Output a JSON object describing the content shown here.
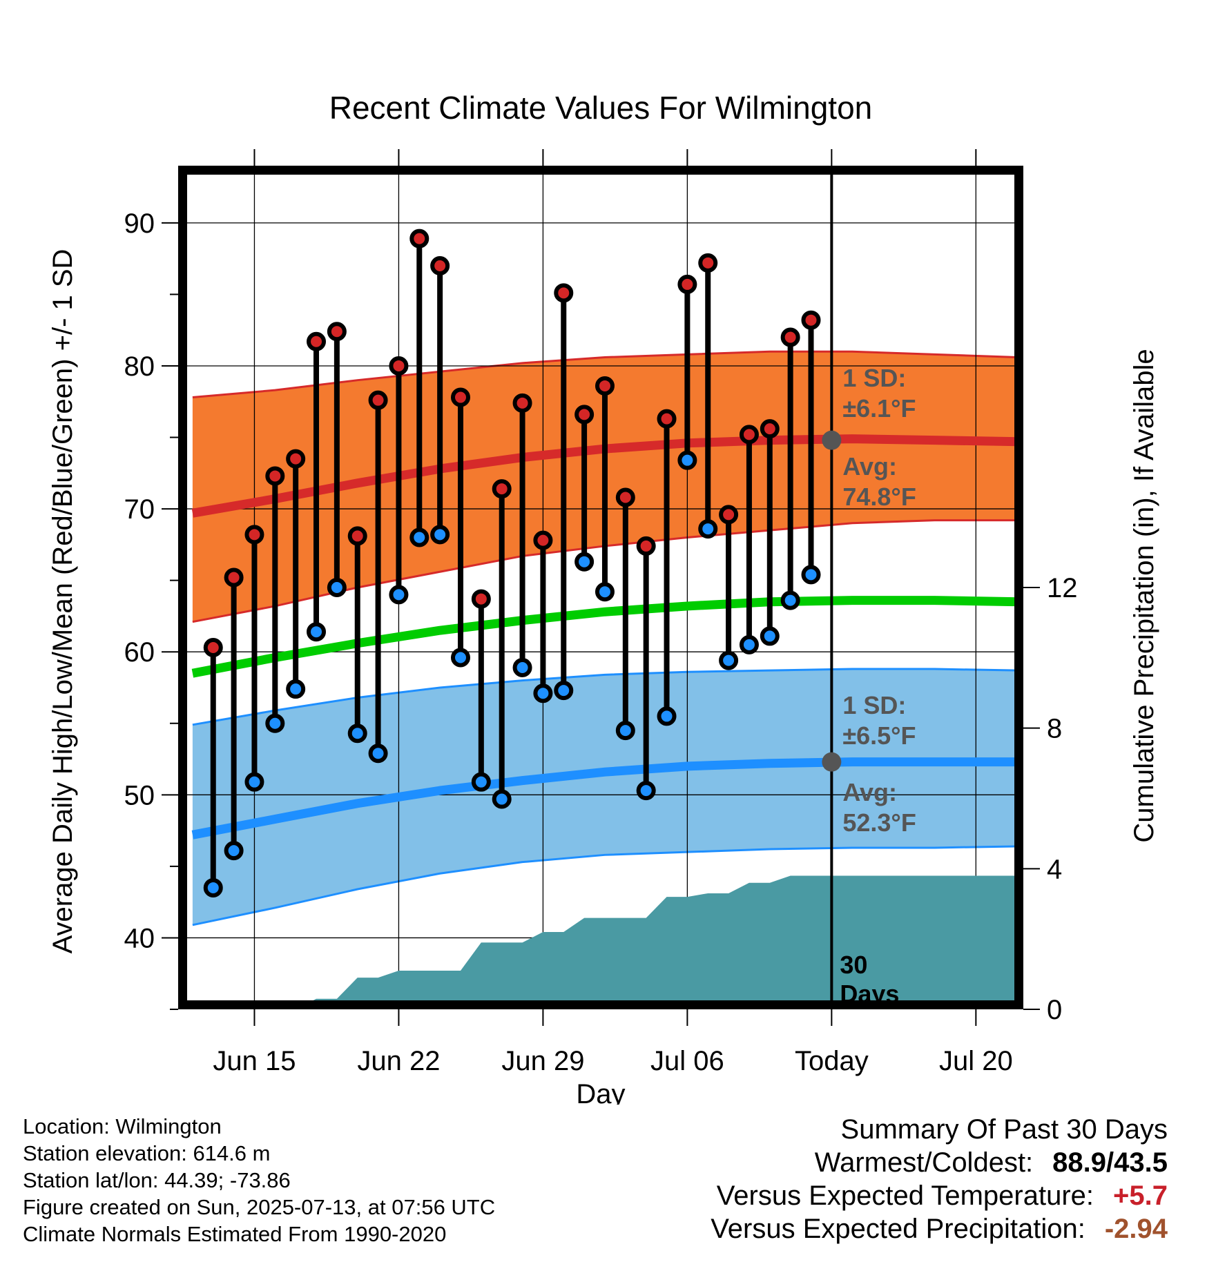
{
  "chart_data": {
    "type": "line",
    "title": "Recent Climate Values For Wilmington",
    "xlabel": "Day",
    "ylabel": "Average Daily High/Low/Mean (Red/Blue/Green) +/- 1 SD",
    "y2label": "Cumulative Precipitation (in), If Available",
    "ylim": [
      35,
      94
    ],
    "y2lim": [
      0,
      24
    ],
    "x_ticks": [
      {
        "day": 3,
        "label": "Jun 15"
      },
      {
        "day": 10,
        "label": "Jun 22"
      },
      {
        "day": 17,
        "label": "Jun 29"
      },
      {
        "day": 24,
        "label": "Jul 06"
      },
      {
        "day": 31,
        "label": "Today"
      },
      {
        "day": 38,
        "label": "Jul 20"
      }
    ],
    "xlim": [
      -0.7,
      40.3
    ],
    "y_ticks": [
      40,
      50,
      60,
      70,
      80,
      90
    ],
    "y2_ticks": [
      0,
      4,
      8,
      12
    ],
    "grid": true,
    "today_day": 31,
    "observations": {
      "days": [
        1,
        2,
        3,
        4,
        5,
        6,
        7,
        8,
        9,
        10,
        11,
        12,
        13,
        14,
        15,
        16,
        17,
        18,
        19,
        20,
        21,
        22,
        23,
        24,
        25,
        26,
        27,
        28,
        29,
        30
      ],
      "high": [
        60.3,
        65.2,
        68.2,
        72.3,
        73.5,
        81.7,
        82.4,
        68.1,
        77.6,
        80.0,
        88.9,
        87.0,
        77.8,
        63.7,
        71.4,
        77.4,
        67.8,
        85.1,
        76.6,
        78.6,
        70.8,
        67.4,
        76.3,
        85.7,
        87.2,
        69.6,
        75.2,
        75.6,
        82.0,
        83.2
      ],
      "low": [
        43.5,
        46.1,
        50.9,
        55.0,
        57.4,
        61.4,
        64.5,
        54.3,
        52.9,
        64.0,
        68.0,
        68.2,
        59.6,
        50.9,
        49.7,
        58.9,
        57.1,
        57.3,
        66.3,
        64.2,
        54.5,
        50.3,
        55.5,
        73.4,
        68.6,
        59.4,
        60.5,
        61.1,
        63.6,
        65.4
      ]
    },
    "normals": {
      "days": [
        0,
        4,
        8,
        12,
        16,
        20,
        24,
        28,
        32,
        36,
        40
      ],
      "high_avg": [
        69.7,
        70.7,
        71.8,
        72.8,
        73.6,
        74.2,
        74.6,
        74.8,
        74.9,
        74.8,
        74.7
      ],
      "high_upper": [
        77.8,
        78.3,
        79.0,
        79.6,
        80.2,
        80.6,
        80.8,
        81.0,
        81.0,
        80.8,
        80.6
      ],
      "high_lower": [
        62.1,
        63.2,
        64.5,
        65.6,
        66.7,
        67.4,
        68.0,
        68.5,
        69.0,
        69.2,
        69.2
      ],
      "mean": [
        58.5,
        59.6,
        60.6,
        61.5,
        62.2,
        62.8,
        63.2,
        63.5,
        63.6,
        63.6,
        63.5
      ],
      "low_avg": [
        47.2,
        48.3,
        49.4,
        50.3,
        51.0,
        51.6,
        52.0,
        52.2,
        52.3,
        52.3,
        52.3
      ],
      "low_upper": [
        54.9,
        55.9,
        56.8,
        57.5,
        58.0,
        58.4,
        58.6,
        58.7,
        58.8,
        58.8,
        58.7
      ],
      "low_lower": [
        40.9,
        42.1,
        43.4,
        44.5,
        45.3,
        45.8,
        46.0,
        46.2,
        46.3,
        46.3,
        46.4
      ]
    },
    "precipitation": {
      "days": [
        0,
        5,
        6,
        7,
        8,
        9,
        10,
        11,
        12,
        13,
        14,
        15,
        16,
        17,
        18,
        19,
        20,
        21,
        22,
        23,
        24,
        25,
        26,
        27,
        28,
        29,
        30,
        31,
        40.3
      ],
      "cumulative": [
        0,
        0,
        0.3,
        0.3,
        0.9,
        0.9,
        1.1,
        1.1,
        1.1,
        1.1,
        1.9,
        1.9,
        1.9,
        2.2,
        2.2,
        2.6,
        2.6,
        2.6,
        2.6,
        3.2,
        3.2,
        3.3,
        3.3,
        3.6,
        3.6,
        3.8,
        3.8,
        3.8,
        3.8
      ]
    },
    "annotations": {
      "high_sd": {
        "title": "1 SD:",
        "value": "±6.1°F"
      },
      "high_avg": {
        "title": "Avg:",
        "value": "74.8°F"
      },
      "low_sd": {
        "title": "1 SD:",
        "value": "±6.5°F"
      },
      "low_avg": {
        "title": "Avg:",
        "value": "52.3°F"
      },
      "precip": {
        "line1": "30",
        "line2": "Days"
      }
    },
    "colors": {
      "high_band": "#f47a2f",
      "high_line": "#d62a2a",
      "low_band": "#82c0e8",
      "low_line": "#1e8fff",
      "mean_line": "#00cc00",
      "precip_fill": "#4a9aa3",
      "high_dot": "#d42626",
      "low_dot": "#1e90ff",
      "annotation": "#555555"
    }
  },
  "info": {
    "location": "Location: Wilmington",
    "elevation": "Station elevation: 614.6 m",
    "latlon": "Station lat/lon: 44.39; -73.86",
    "created": "Figure created on Sun, 2025-07-13, at 07:56 UTC",
    "normals": "Climate Normals Estimated From 1990-2020"
  },
  "summary": {
    "heading": "Summary Of Past 30 Days",
    "warm_label": "Warmest/Coldest:",
    "warm_value": "88.9/43.5",
    "temp_label": "Versus Expected Temperature:",
    "temp_value": "+5.7",
    "prec_label": "Versus Expected Precipitation:",
    "prec_value": "-2.94"
  }
}
